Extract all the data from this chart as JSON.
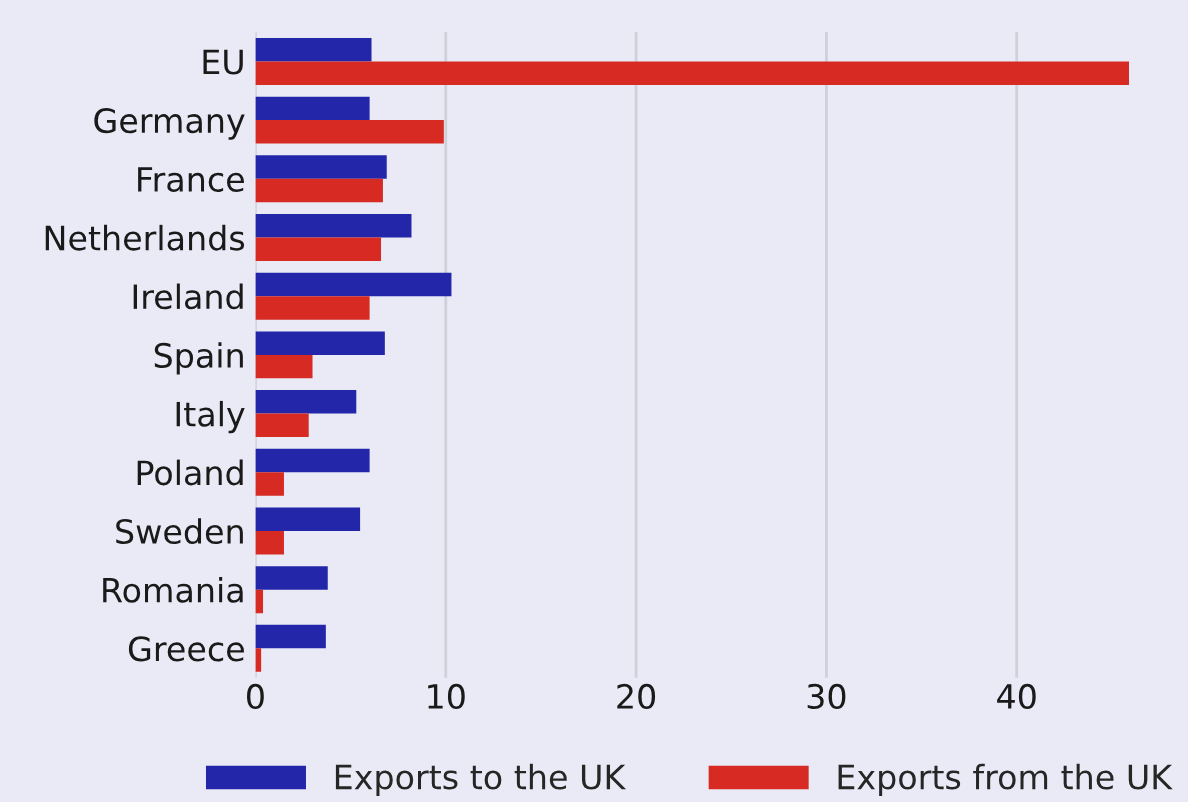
{
  "chart_data": {
    "type": "bar",
    "orientation": "horizontal",
    "categories": [
      "EU",
      "Germany",
      "France",
      "Netherlands",
      "Ireland",
      "Spain",
      "Italy",
      "Poland",
      "Sweden",
      "Romania",
      "Greece"
    ],
    "series": [
      {
        "name": "Exports to the UK",
        "color": "#2326a8",
        "values": [
          6.1,
          6.0,
          6.9,
          8.2,
          10.3,
          6.8,
          5.3,
          6.0,
          5.5,
          3.8,
          3.7
        ]
      },
      {
        "name": "Exports from the UK",
        "color": "#d62a22",
        "values": [
          45.9,
          9.9,
          6.7,
          6.6,
          6.0,
          3.0,
          2.8,
          1.5,
          1.5,
          0.4,
          0.3
        ]
      }
    ],
    "xlim": [
      0,
      49
    ],
    "xticks": [
      0,
      10,
      20,
      30,
      40
    ],
    "grid": "x",
    "legend": "bottom"
  }
}
